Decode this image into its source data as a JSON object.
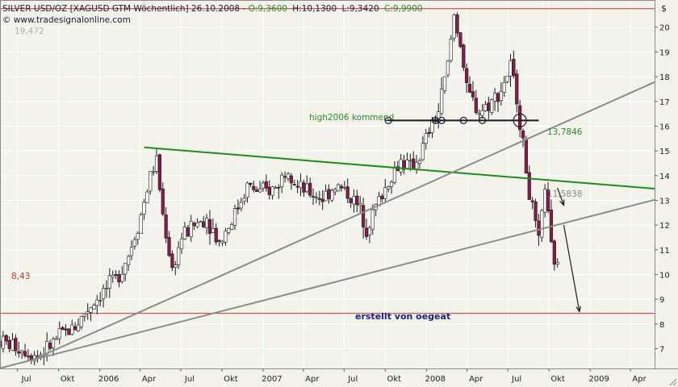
{
  "header": {
    "symbol_text": "SILVER USD/OZ [XAGUSD GTM  Wöchentlich] 26.10.2008 -",
    "open_label": "O:9,3600",
    "high_label": "H:10,1300",
    "low_label": "L:9,3420",
    "close_label": "C:9,9900",
    "copyright": "© www.tradesignalonline.com",
    "top_left_value": "19,472",
    "currency_sign": "$"
  },
  "colors": {
    "background": "#f3f3ec",
    "bull_candle": "#ffffff",
    "bear_candle": "#8b1a4a",
    "support_line": "#c0392b",
    "green_trend": "#1e8c1e",
    "gray_trend": "#8c8c8c",
    "text_green": "#2a8a2a"
  },
  "chart_data": {
    "type": "candlestick",
    "title": "SILVER USD/OZ [XAGUSD GTM  Wöchentlich] 26.10.2008",
    "ylim": [
      6.2,
      21.1
    ],
    "yticks": [
      7,
      8,
      9,
      10,
      11,
      12,
      13,
      14,
      15,
      16,
      17,
      18,
      19,
      20
    ],
    "ytick_labels": [
      "7",
      "8",
      "9",
      "10",
      "11",
      "12",
      "13",
      "14",
      "15",
      "16",
      "17",
      "18",
      "19",
      "20"
    ],
    "x_range": [
      "2005-05-23",
      "2009-05-25"
    ],
    "xticks": [
      {
        "date": "2005-07-01",
        "label": "Jul"
      },
      {
        "date": "2005-10-01",
        "label": "Okt"
      },
      {
        "date": "2006-01-01",
        "label": "2006"
      },
      {
        "date": "2006-04-01",
        "label": "Apr"
      },
      {
        "date": "2006-07-01",
        "label": "Jul"
      },
      {
        "date": "2006-10-01",
        "label": "Okt"
      },
      {
        "date": "2007-01-01",
        "label": "2007"
      },
      {
        "date": "2007-04-01",
        "label": "Apr"
      },
      {
        "date": "2007-07-01",
        "label": "Jul"
      },
      {
        "date": "2007-10-01",
        "label": "Okt"
      },
      {
        "date": "2008-01-01",
        "label": "2008"
      },
      {
        "date": "2008-04-01",
        "label": "Apr"
      },
      {
        "date": "2008-07-01",
        "label": "Jul"
      },
      {
        "date": "2008-10-01",
        "label": "Okt"
      },
      {
        "date": "2009-01-01",
        "label": "2009"
      },
      {
        "date": "2009-04-01",
        "label": "Apr"
      }
    ],
    "grid": true,
    "price_path": [
      [
        "2005-05-23",
        7.3
      ],
      [
        "2005-06-27",
        7.1
      ],
      [
        "2005-07-25",
        6.9
      ],
      [
        "2005-08-15",
        6.7
      ],
      [
        "2005-09-05",
        7.0
      ],
      [
        "2005-10-03",
        7.5
      ],
      [
        "2005-11-07",
        7.9
      ],
      [
        "2005-12-05",
        8.6
      ],
      [
        "2006-01-02",
        9.2
      ],
      [
        "2006-02-06",
        9.8
      ],
      [
        "2006-03-06",
        10.8
      ],
      [
        "2006-04-03",
        12.4
      ],
      [
        "2006-04-24",
        14.0
      ],
      [
        "2006-05-08",
        14.6
      ],
      [
        "2006-05-22",
        12.4
      ],
      [
        "2006-06-12",
        10.2
      ],
      [
        "2006-07-03",
        11.5
      ],
      [
        "2006-07-31",
        12.0
      ],
      [
        "2006-08-28",
        12.3
      ],
      [
        "2006-09-25",
        11.3
      ],
      [
        "2006-10-23",
        12.2
      ],
      [
        "2006-11-27",
        13.6
      ],
      [
        "2006-12-25",
        13.3
      ],
      [
        "2007-01-29",
        13.5
      ],
      [
        "2007-02-26",
        14.4
      ],
      [
        "2007-03-19",
        13.5
      ],
      [
        "2007-04-16",
        13.3
      ],
      [
        "2007-05-14",
        13.1
      ],
      [
        "2007-06-11",
        13.6
      ],
      [
        "2007-07-09",
        13.3
      ],
      [
        "2007-08-06",
        12.6
      ],
      [
        "2007-08-20",
        11.9
      ],
      [
        "2007-09-17",
        13.0
      ],
      [
        "2007-10-15",
        14.0
      ],
      [
        "2007-11-05",
        14.6
      ],
      [
        "2007-11-26",
        14.3
      ],
      [
        "2007-12-17",
        14.8
      ],
      [
        "2008-01-07",
        15.8
      ],
      [
        "2008-01-28",
        16.6
      ],
      [
        "2008-02-18",
        18.5
      ],
      [
        "2008-03-03",
        20.5
      ],
      [
        "2008-03-17",
        19.4
      ],
      [
        "2008-03-31",
        17.4
      ],
      [
        "2008-04-28",
        16.6
      ],
      [
        "2008-05-26",
        17.0
      ],
      [
        "2008-06-16",
        17.5
      ],
      [
        "2008-07-07",
        18.4
      ],
      [
        "2008-07-21",
        17.2
      ],
      [
        "2008-08-04",
        15.2
      ],
      [
        "2008-08-18",
        13.3
      ],
      [
        "2008-09-08",
        11.2
      ],
      [
        "2008-09-22",
        13.6
      ],
      [
        "2008-10-06",
        11.0
      ],
      [
        "2008-10-26",
        9.9
      ]
    ],
    "horizontal_lines": [
      {
        "value": 20.75,
        "label": ""
      },
      {
        "value": 8.43,
        "label": "8,43"
      }
    ],
    "trend_lines": [
      {
        "name": "green_downtrend",
        "from": [
          "2006-04-10",
          15.14
        ],
        "to": [
          "2009-05-25",
          13.47
        ]
      },
      {
        "name": "steep_uptrend",
        "from": [
          "2005-08-08",
          6.58
        ],
        "to": [
          "2009-05-25",
          17.78
        ]
      },
      {
        "name": "shallow_uptrend",
        "from": [
          "2005-05-23",
          6.21
        ],
        "to": [
          "2009-05-25",
          13.02
        ]
      }
    ],
    "plateau_segment": {
      "from": [
        "2007-10-08",
        16.23
      ],
      "to": [
        "2008-09-08",
        16.23
      ]
    },
    "arrows": [
      {
        "from": [
          "2008-10-20",
          13.5
        ],
        "to": [
          "2008-11-03",
          12.8
        ]
      },
      {
        "from": [
          "2008-11-03",
          12.0
        ],
        "to": [
          "2008-12-08",
          8.5
        ]
      }
    ],
    "annotations": {
      "trend_label": "high2006 kommend",
      "level_13": "13,7846",
      "level_11": "11,5838",
      "level_843": "8,43",
      "author": "erstellt von oegeat"
    }
  }
}
